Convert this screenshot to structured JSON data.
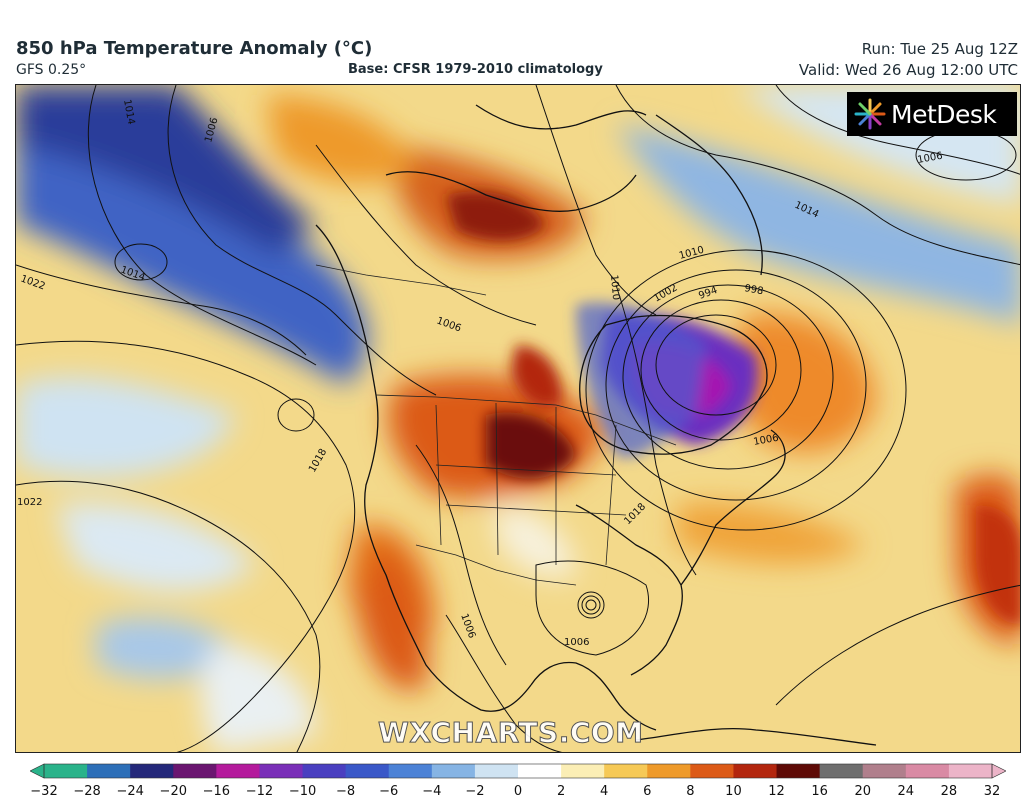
{
  "header": {
    "title": "850 hPa Temperature Anomaly (°C)",
    "model": "GFS 0.25°",
    "base": "Base: CFSR 1979-2010 climatology",
    "run": "Run: Tue 25 Aug 12Z",
    "valid": "Valid: Wed 26 Aug 12:00 UTC"
  },
  "logo": {
    "text": "MetDesk"
  },
  "watermark": "WXCHARTS.COM",
  "map": {
    "isobar_labels": [
      "1014",
      "1006",
      "1022",
      "1014",
      "1022",
      "1018",
      "1006",
      "1014",
      "1010",
      "1002",
      "994",
      "998",
      "1006",
      "1006",
      "1010",
      "1018",
      "1006",
      "1006"
    ]
  },
  "colorbar": {
    "ticks": [
      "−32",
      "−28",
      "−24",
      "−20",
      "−16",
      "−12",
      "−10",
      "−8",
      "−6",
      "−4",
      "−2",
      "0",
      "2",
      "4",
      "6",
      "8",
      "10",
      "12",
      "16",
      "20",
      "24",
      "28",
      "32"
    ],
    "colors": [
      "#2ab38a",
      "#2d6fb8",
      "#24287a",
      "#6a1670",
      "#b41a9c",
      "#7a2fb8",
      "#4a3fc0",
      "#3a58c8",
      "#4c82d6",
      "#86b4e4",
      "#cfe3f2",
      "#ffffff",
      "#fbeeb5",
      "#f6c956",
      "#ee9a2a",
      "#dc5a17",
      "#b3260e",
      "#5e0a06",
      "#6e6e6e",
      "#b07f8c",
      "#d98aa4",
      "#ecb4c8"
    ]
  }
}
